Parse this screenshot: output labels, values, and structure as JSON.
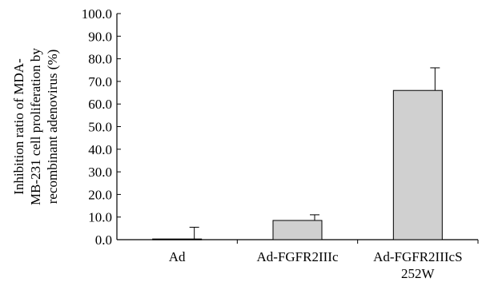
{
  "chart_data": {
    "type": "bar",
    "categories": [
      [
        "Ad"
      ],
      [
        "Ad-FGFR2IIIc"
      ],
      [
        "Ad-FGFR2IIIcS",
        "252W"
      ]
    ],
    "values": [
      0.3,
      8.5,
      66.0
    ],
    "errors": [
      5.2,
      2.5,
      10.0
    ],
    "ylabel_lines": [
      "Inhibition ratio of MDA-",
      "MB-231 cell proliferation by",
      "recombinant adenovirus (%)"
    ],
    "ylim": [
      0,
      100
    ],
    "yticks": [
      "0.0",
      "10.0",
      "20.0",
      "30.0",
      "40.0",
      "50.0",
      "60.0",
      "70.0",
      "80.0",
      "90.0",
      "100.0"
    ],
    "bar_color": "#d0d0d0",
    "grid": false
  }
}
